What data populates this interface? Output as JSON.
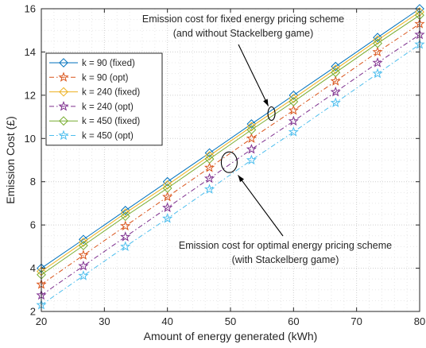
{
  "chart_data": {
    "type": "line",
    "xlabel": "Amount of energy generated (kWh)",
    "ylabel": "Emission Cost (£)",
    "xlim": [
      20,
      80
    ],
    "ylim": [
      2,
      16
    ],
    "xticks": [
      20,
      30,
      40,
      50,
      60,
      70,
      80
    ],
    "yticks": [
      2,
      4,
      6,
      8,
      10,
      12,
      14,
      16
    ],
    "grid": true,
    "legend_position": "upper-left",
    "x": [
      20,
      26.67,
      33.33,
      40,
      46.67,
      53.33,
      60,
      66.67,
      73.33,
      80
    ],
    "series": [
      {
        "name": "k = 90 (fixed)",
        "color": "#0072BD",
        "dash": "solid",
        "marker": "diamond",
        "values": [
          4.0,
          5.33,
          6.67,
          8.0,
          9.33,
          10.67,
          12.0,
          13.33,
          14.67,
          16.0
        ]
      },
      {
        "name": "k = 90 (opt)",
        "color": "#D95319",
        "dash": "dashdot",
        "marker": "star",
        "values": [
          3.25,
          4.6,
          5.95,
          7.3,
          8.65,
          10.0,
          11.3,
          12.65,
          14.0,
          15.3
        ]
      },
      {
        "name": "k = 240 (fixed)",
        "color": "#EDB120",
        "dash": "solid",
        "marker": "diamond",
        "values": [
          3.85,
          5.2,
          6.55,
          7.85,
          9.2,
          10.55,
          11.85,
          13.2,
          14.55,
          15.85
        ]
      },
      {
        "name": "k = 240 (opt)",
        "color": "#7E2F8E",
        "dash": "dashdot",
        "marker": "star",
        "values": [
          2.75,
          4.1,
          5.45,
          6.8,
          8.15,
          9.5,
          10.8,
          12.15,
          13.5,
          14.8
        ]
      },
      {
        "name": "k = 450 (fixed)",
        "color": "#77AC30",
        "dash": "solid",
        "marker": "diamond",
        "values": [
          3.7,
          5.05,
          6.4,
          7.7,
          9.05,
          10.4,
          11.7,
          13.05,
          14.4,
          15.7
        ]
      },
      {
        "name": "k = 450 (opt)",
        "color": "#4DBEEE",
        "dash": "dashdot",
        "marker": "star",
        "values": [
          2.3,
          3.65,
          5.0,
          6.3,
          7.65,
          9.0,
          10.3,
          11.65,
          13.0,
          14.35
        ]
      }
    ],
    "annotations": [
      {
        "lines": [
          "Emission cost for fixed energy pricing scheme",
          "(and without Stackelberg game)"
        ],
        "ellipse_center": [
          56.5,
          11.15
        ],
        "arrow_to": [
          56.0,
          11.5
        ]
      },
      {
        "lines": [
          "Emission cost for optimal energy pricing scheme",
          "(with Stackelberg game)"
        ],
        "ellipse_center": [
          49.8,
          8.9
        ],
        "arrow_to": [
          51.2,
          8.3
        ]
      }
    ]
  }
}
